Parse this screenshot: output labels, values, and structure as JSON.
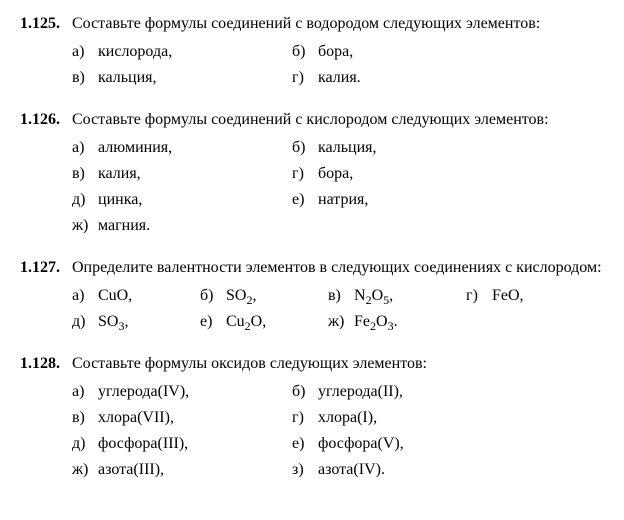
{
  "problems": [
    {
      "number": "1.125.",
      "text": "Составьте формулы соединений с водородом следующих элементов:",
      "layout": "2col",
      "options": [
        {
          "label": "а)",
          "text": "кислорода,"
        },
        {
          "label": "б)",
          "text": "бора,"
        },
        {
          "label": "в)",
          "text": "кальция,"
        },
        {
          "label": "г)",
          "text": "калия."
        }
      ]
    },
    {
      "number": "1.126.",
      "text": "Составьте формулы соединений с кислородом следующих элементов:",
      "layout": "2col",
      "options": [
        {
          "label": "а)",
          "text": "алюминия,"
        },
        {
          "label": "б)",
          "text": "кальция,"
        },
        {
          "label": "в)",
          "text": "калия,"
        },
        {
          "label": "г)",
          "text": "бора,"
        },
        {
          "label": "д)",
          "text": "цинка,"
        },
        {
          "label": "е)",
          "text": "натрия,"
        },
        {
          "label": "ж)",
          "text": "магния."
        }
      ]
    },
    {
      "number": "1.127.",
      "text": "Определите валентности элементов в следующих соединениях с кислородом:",
      "layout": "4col",
      "options": [
        {
          "label": "а)",
          "html": "CuO,"
        },
        {
          "label": "б)",
          "html": "SO<sub>2</sub>,"
        },
        {
          "label": "в)",
          "html": "N<sub>2</sub>O<sub>5</sub>,"
        },
        {
          "label": "г)",
          "html": "FeO,"
        },
        {
          "label": "д)",
          "html": "SO<sub>3</sub>,"
        },
        {
          "label": "е)",
          "html": "Cu<sub>2</sub>O,"
        },
        {
          "label": "ж)",
          "html": "Fe<sub>2</sub>O<sub>3</sub>."
        }
      ]
    },
    {
      "number": "1.128.",
      "text": "Составьте формулы оксидов следующих элементов:",
      "layout": "2col",
      "options": [
        {
          "label": "а)",
          "text": "углерода(IV),"
        },
        {
          "label": "б)",
          "text": "углерода(II),"
        },
        {
          "label": "в)",
          "text": "хлора(VII),"
        },
        {
          "label": "г)",
          "text": "хлора(I),"
        },
        {
          "label": "д)",
          "text": "фосфора(III),"
        },
        {
          "label": "е)",
          "text": "фосфора(V),"
        },
        {
          "label": "ж)",
          "text": "азота(III),"
        },
        {
          "label": "з)",
          "text": "азота(IV)."
        }
      ]
    }
  ]
}
